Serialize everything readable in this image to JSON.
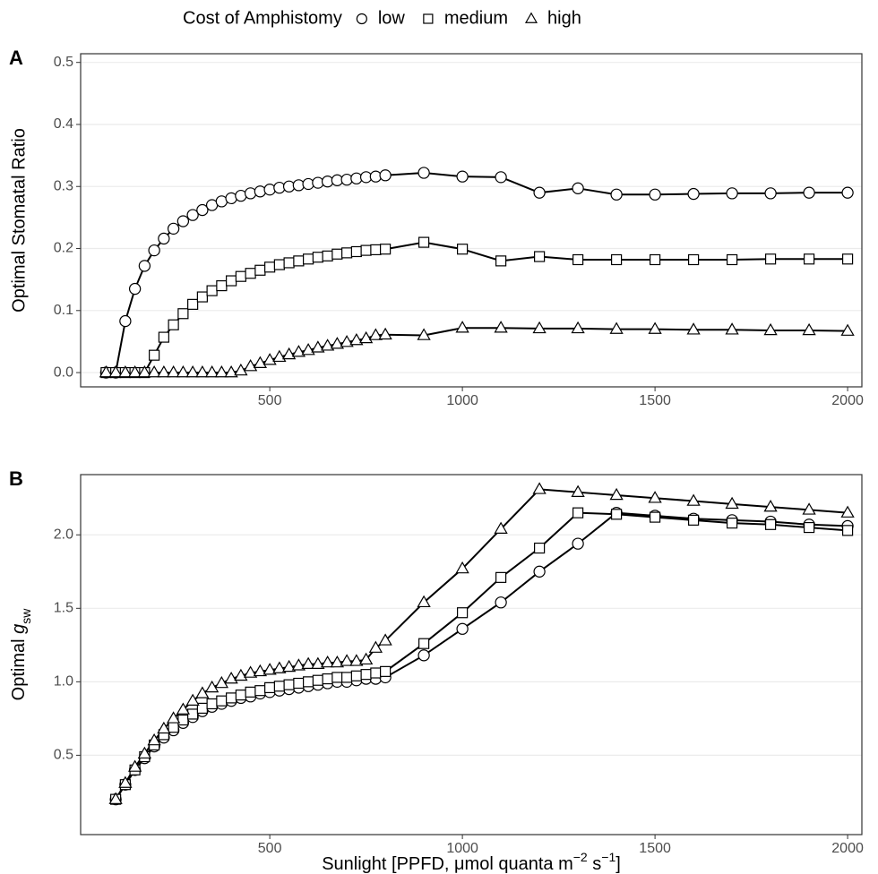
{
  "legend_title": "Cost of Amphistomy",
  "chart_data": [
    {
      "type": "line",
      "tag": "A",
      "ylabel": "Optimal Stomatal Ratio",
      "x": [
        75,
        100,
        125,
        150,
        175,
        200,
        225,
        250,
        275,
        300,
        325,
        350,
        375,
        400,
        425,
        450,
        475,
        500,
        525,
        550,
        575,
        600,
        625,
        650,
        675,
        700,
        725,
        750,
        775,
        800,
        900,
        1000,
        1100,
        1200,
        1300,
        1400,
        1500,
        1600,
        1700,
        1800,
        1900,
        2000
      ],
      "series": [
        {
          "name": "low",
          "marker": "circle",
          "color": "#000000",
          "values": [
            0,
            0,
            0.083,
            0.135,
            0.172,
            0.197,
            0.216,
            0.232,
            0.244,
            0.254,
            0.262,
            0.27,
            0.276,
            0.281,
            0.285,
            0.289,
            0.292,
            0.295,
            0.298,
            0.3,
            0.302,
            0.304,
            0.306,
            0.308,
            0.31,
            0.311,
            0.313,
            0.315,
            0.316,
            0.318,
            0.322,
            0.316,
            0.315,
            0.29,
            0.297,
            0.287,
            0.287,
            0.288,
            0.289,
            0.289,
            0.29,
            0.29
          ]
        },
        {
          "name": "medium",
          "marker": "square",
          "color": "#000000",
          "values": [
            0,
            0,
            0,
            0,
            0,
            0.028,
            0.057,
            0.077,
            0.095,
            0.11,
            0.122,
            0.132,
            0.14,
            0.148,
            0.155,
            0.16,
            0.165,
            0.17,
            0.174,
            0.177,
            0.18,
            0.183,
            0.186,
            0.188,
            0.191,
            0.193,
            0.195,
            0.197,
            0.198,
            0.199,
            0.21,
            0.199,
            0.18,
            0.187,
            0.182,
            0.182,
            0.182,
            0.182,
            0.182,
            0.183,
            0.183,
            0.183
          ]
        },
        {
          "name": "high",
          "marker": "triangle",
          "color": "#000000",
          "values": [
            0,
            0,
            0,
            0,
            0,
            0,
            0,
            0,
            0,
            0,
            0,
            0,
            0,
            0,
            0.003,
            0.01,
            0.015,
            0.02,
            0.025,
            0.029,
            0.033,
            0.036,
            0.04,
            0.043,
            0.046,
            0.049,
            0.052,
            0.055,
            0.06,
            0.061,
            0.06,
            0.072,
            0.072,
            0.071,
            0.071,
            0.07,
            0.07,
            0.069,
            0.069,
            0.068,
            0.068,
            0.067
          ]
        }
      ],
      "xlim": [
        9,
        2037
      ],
      "xticks": [
        500,
        1000,
        1500,
        2000
      ],
      "ylim": [
        -0.023,
        0.514
      ],
      "yticks": [
        {
          "value": 0,
          "label": "0.0"
        },
        0.1,
        0.2,
        0.3,
        0.4,
        0.5
      ],
      "grid": true
    },
    {
      "type": "line",
      "tag": "B",
      "ylabel": [
        "Optimal ",
        "g",
        "sw"
      ],
      "xlabel": [
        "Sunlight [PPFD, μmol quanta m",
        "−2",
        " s",
        "−1",
        "]"
      ],
      "x": [
        100,
        125,
        150,
        175,
        200,
        225,
        250,
        275,
        300,
        325,
        350,
        375,
        400,
        425,
        450,
        475,
        500,
        525,
        550,
        575,
        600,
        625,
        650,
        675,
        700,
        725,
        750,
        775,
        800,
        900,
        1000,
        1100,
        1200,
        1300,
        1400,
        1500,
        1600,
        1700,
        1800,
        1900,
        2000
      ],
      "series": [
        {
          "name": "low",
          "marker": "circle",
          "color": "#000000",
          "values": [
            0.2,
            0.3,
            0.4,
            0.48,
            0.56,
            0.62,
            0.67,
            0.72,
            0.76,
            0.8,
            0.83,
            0.85,
            0.87,
            0.89,
            0.9,
            0.92,
            0.93,
            0.94,
            0.95,
            0.96,
            0.97,
            0.98,
            0.99,
            1.0,
            1.0,
            1.01,
            1.02,
            1.02,
            1.03,
            1.18,
            1.36,
            1.54,
            1.75,
            1.94,
            2.15,
            2.13,
            2.11,
            2.1,
            2.09,
            2.07,
            2.06
          ]
        },
        {
          "name": "medium",
          "marker": "square",
          "color": "#000000",
          "values": [
            0.2,
            0.3,
            0.4,
            0.49,
            0.57,
            0.64,
            0.69,
            0.74,
            0.78,
            0.82,
            0.85,
            0.87,
            0.89,
            0.91,
            0.93,
            0.94,
            0.96,
            0.97,
            0.98,
            0.99,
            1.0,
            1.01,
            1.02,
            1.03,
            1.03,
            1.04,
            1.05,
            1.06,
            1.07,
            1.26,
            1.47,
            1.71,
            1.91,
            2.15,
            2.14,
            2.12,
            2.1,
            2.08,
            2.07,
            2.05,
            2.03
          ]
        },
        {
          "name": "high",
          "marker": "triangle",
          "color": "#000000",
          "values": [
            0.2,
            0.31,
            0.42,
            0.51,
            0.6,
            0.68,
            0.75,
            0.81,
            0.87,
            0.92,
            0.96,
            0.99,
            1.02,
            1.04,
            1.06,
            1.07,
            1.08,
            1.09,
            1.1,
            1.11,
            1.12,
            1.12,
            1.13,
            1.13,
            1.14,
            1.14,
            1.15,
            1.23,
            1.28,
            1.54,
            1.77,
            2.04,
            2.31,
            2.29,
            2.27,
            2.25,
            2.23,
            2.21,
            2.19,
            2.17,
            2.15
          ]
        }
      ],
      "xlim": [
        9,
        2037
      ],
      "xticks": [
        500,
        1000,
        1500,
        2000
      ],
      "ylim": [
        -0.04,
        2.41
      ],
      "yticks": [
        0.5,
        {
          "value": 1,
          "label": "1.0"
        },
        1.5,
        {
          "value": 2,
          "label": "2.0"
        }
      ],
      "grid": true
    }
  ]
}
